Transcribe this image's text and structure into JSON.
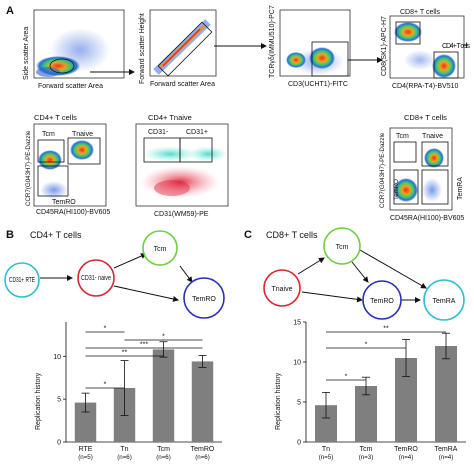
{
  "panel_a": {
    "letter": "A",
    "plots": [
      {
        "x_label": "Forward scatter Area",
        "y_label": "Side scatter Area"
      },
      {
        "x_label": "Forward scatter Area",
        "y_label": "Forward scatter Height"
      },
      {
        "x_label": "CD3(UCHT1)-FITC",
        "y_label": "TCRγδ(IMMU510)-PC7"
      },
      {
        "x_label": "CD4(RPA-T4)-BV510",
        "y_label": "CD8(SK1)-APC-H7",
        "gate_labels": [
          "CD8+ T cells",
          "CD4+ T cells"
        ]
      },
      {
        "title": "CD4+ T cells",
        "x_label": "CD45RA(HI100)-BV605",
        "y_label": "CCR7(G043H7)-PE-Dazzle",
        "gate_labels": [
          "Tcm",
          "Tnaive",
          "TemRO"
        ]
      },
      {
        "title": "CD4+ Tnaive",
        "x_label": "CD31(WM59)-PE",
        "y_label": "",
        "gate_labels": [
          "CD31-",
          "CD31+"
        ]
      },
      {
        "title": "CD8+ T cells",
        "x_label": "CD45RA(HI100)-BV605",
        "y_label": "CCR7(G043H7)-PE-Dazzle",
        "gate_labels": [
          "Tcm",
          "Tnaive",
          "TemRO",
          "TemRA"
        ]
      }
    ]
  },
  "panel_b": {
    "letter": "B",
    "title": "CD4+ T cells",
    "nodes": [
      "CD31+ RTE",
      "CD31- naive",
      "Tcm",
      "TemRO"
    ],
    "significance": [
      "*",
      "*",
      "***",
      "**",
      "*"
    ]
  },
  "panel_c": {
    "letter": "C",
    "title": "CD8+ T cells",
    "nodes": [
      "Tnaive",
      "Tcm",
      "TemRO",
      "TemRA"
    ],
    "significance": [
      "**",
      "*",
      "*"
    ]
  },
  "chart_data": [
    {
      "type": "bar",
      "categories": [
        "RTE",
        "Tn",
        "Tcm",
        "TemRO"
      ],
      "category_n": [
        "(n=5)",
        "(n=6)",
        "(n=6)",
        "(n=6)"
      ],
      "values": [
        4.6,
        6.3,
        10.8,
        9.4
      ],
      "error": [
        1.1,
        3.2,
        0.9,
        0.7
      ],
      "ylabel": "Replication history",
      "ylim": [
        0,
        14
      ],
      "yticks": [
        0,
        5,
        10
      ],
      "color": "#7f7f7f"
    },
    {
      "type": "bar",
      "categories": [
        "Tn",
        "Tcm",
        "TemRO",
        "TemRA"
      ],
      "category_n": [
        "(n=5)",
        "(n=3)",
        "(n=4)",
        "(n=4)"
      ],
      "values": [
        4.6,
        7.0,
        10.5,
        12.0
      ],
      "error": [
        1.6,
        1.1,
        2.3,
        1.6
      ],
      "ylabel": "Replication history",
      "ylim": [
        0,
        15
      ],
      "yticks": [
        0,
        5,
        10,
        15
      ],
      "color": "#7f7f7f"
    }
  ]
}
